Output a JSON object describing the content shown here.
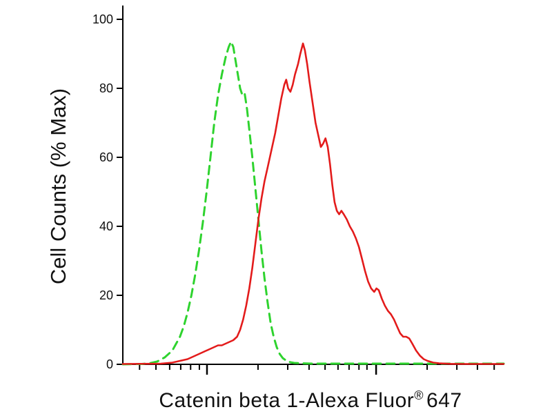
{
  "chart_data": {
    "type": "line",
    "title": "",
    "ylabel": "Cell Counts (% Max)",
    "xlabel": {
      "main": "Catenin beta 1-Alexa Fluor",
      "registered": "®",
      "suffix": "647"
    },
    "x_scale": "log-unlabeled",
    "ylim": [
      0,
      100
    ],
    "y_ticks": [
      0,
      20,
      40,
      60,
      80,
      100
    ],
    "x_major_ticks_pct": [
      22.1,
      66.5
    ],
    "x_minor_ticks_pct": [
      4.4,
      8.7,
      12.3,
      15.2,
      17.8,
      20.1,
      35.5,
      43.3,
      48.9,
      53.1,
      56.5,
      59.4,
      62.0,
      64.1,
      79.9,
      87.7,
      93.1,
      97.5
    ],
    "axis_color": "#000000",
    "series": [
      {
        "name": "control-dashed-green",
        "color": "#2ed32e",
        "dash": "12 8",
        "width": 3,
        "peak_y": 93.5,
        "points": [
          [
            0,
            0
          ],
          [
            5,
            0.1
          ],
          [
            7,
            0.3
          ],
          [
            9,
            0.8
          ],
          [
            11,
            2
          ],
          [
            13,
            4
          ],
          [
            14,
            6
          ],
          [
            15,
            8
          ],
          [
            16,
            11
          ],
          [
            17,
            15
          ],
          [
            18,
            20
          ],
          [
            19,
            26
          ],
          [
            20,
            33
          ],
          [
            21,
            41
          ],
          [
            22,
            50
          ],
          [
            23,
            60
          ],
          [
            24,
            70
          ],
          [
            25,
            78
          ],
          [
            26,
            84
          ],
          [
            27,
            89
          ],
          [
            27.8,
            92
          ],
          [
            28.4,
            93.5
          ],
          [
            29,
            92
          ],
          [
            29.6,
            88
          ],
          [
            30.2,
            84
          ],
          [
            30.8,
            80
          ],
          [
            31.4,
            78
          ],
          [
            32,
            78.5
          ],
          [
            32.6,
            74
          ],
          [
            33.2,
            68
          ],
          [
            34,
            60
          ],
          [
            34.8,
            51
          ],
          [
            35.6,
            42
          ],
          [
            36.4,
            33
          ],
          [
            37.2,
            25
          ],
          [
            38,
            18
          ],
          [
            38.8,
            12
          ],
          [
            39.6,
            8
          ],
          [
            40.4,
            5
          ],
          [
            41.2,
            3
          ],
          [
            42,
            1.8
          ],
          [
            43,
            1
          ],
          [
            44,
            0.6
          ],
          [
            45,
            0.4
          ],
          [
            47,
            0.3
          ],
          [
            50,
            0.2
          ],
          [
            55,
            0.2
          ],
          [
            60,
            0.2
          ],
          [
            65,
            0.2
          ],
          [
            70,
            0.2
          ],
          [
            75,
            0.2
          ],
          [
            80,
            0.2
          ],
          [
            85,
            0.2
          ],
          [
            90,
            0.2
          ],
          [
            95,
            0.2
          ],
          [
            100,
            0.2
          ]
        ]
      },
      {
        "name": "catenin-beta1-solid-red",
        "color": "#e31b1b",
        "dash": "",
        "width": 2.6,
        "peak_y": 93,
        "points": [
          [
            0,
            0.1
          ],
          [
            10,
            0.2
          ],
          [
            13,
            0.5
          ],
          [
            15,
            1
          ],
          [
            17,
            1.5
          ],
          [
            19,
            2.5
          ],
          [
            21,
            3.5
          ],
          [
            22,
            4
          ],
          [
            23,
            4.5
          ],
          [
            24,
            5
          ],
          [
            25,
            5.5
          ],
          [
            26,
            5.5
          ],
          [
            27,
            6
          ],
          [
            28,
            6.5
          ],
          [
            29,
            7
          ],
          [
            30,
            8
          ],
          [
            30.8,
            10
          ],
          [
            31.6,
            13
          ],
          [
            32.4,
            17
          ],
          [
            33.2,
            22
          ],
          [
            34,
            28
          ],
          [
            34.8,
            35
          ],
          [
            35.6,
            42
          ],
          [
            36.4,
            48
          ],
          [
            37.2,
            53
          ],
          [
            38,
            57
          ],
          [
            38.6,
            60
          ],
          [
            39.2,
            63
          ],
          [
            40,
            67
          ],
          [
            40.8,
            72
          ],
          [
            41.6,
            77
          ],
          [
            42.4,
            81
          ],
          [
            42.9,
            82.5
          ],
          [
            43.4,
            80
          ],
          [
            44,
            79
          ],
          [
            44.6,
            81
          ],
          [
            45.2,
            84
          ],
          [
            46,
            87
          ],
          [
            46.6,
            90
          ],
          [
            47.3,
            93
          ],
          [
            47.8,
            91
          ],
          [
            48.4,
            87
          ],
          [
            49,
            82
          ],
          [
            49.8,
            76
          ],
          [
            50.6,
            70
          ],
          [
            51.4,
            66
          ],
          [
            52,
            63
          ],
          [
            52.6,
            64
          ],
          [
            53.2,
            65.5
          ],
          [
            53.8,
            63
          ],
          [
            54.4,
            58
          ],
          [
            55,
            52
          ],
          [
            55.6,
            47
          ],
          [
            56.2,
            44.5
          ],
          [
            56.8,
            43.5
          ],
          [
            57.4,
            44.5
          ],
          [
            58,
            43.5
          ],
          [
            58.8,
            42
          ],
          [
            59.6,
            40
          ],
          [
            60.4,
            38.5
          ],
          [
            61.2,
            36.5
          ],
          [
            62,
            34
          ],
          [
            62.8,
            30.5
          ],
          [
            63.6,
            27
          ],
          [
            64.4,
            24
          ],
          [
            65.2,
            22
          ],
          [
            66,
            21
          ],
          [
            66.6,
            22
          ],
          [
            67.2,
            21.5
          ],
          [
            68,
            19
          ],
          [
            68.8,
            17
          ],
          [
            69.6,
            15.5
          ],
          [
            70.4,
            14.5
          ],
          [
            71.2,
            13
          ],
          [
            72,
            11
          ],
          [
            72.8,
            9
          ],
          [
            73.6,
            8
          ],
          [
            74.4,
            8
          ],
          [
            75.2,
            7.5
          ],
          [
            76,
            6
          ],
          [
            77,
            4
          ],
          [
            78,
            2.5
          ],
          [
            79,
            1.5
          ],
          [
            80,
            1
          ],
          [
            81.5,
            0.5
          ],
          [
            83,
            0.3
          ],
          [
            86,
            0.15
          ],
          [
            90,
            0.1
          ],
          [
            95,
            0.1
          ],
          [
            100,
            0.1
          ]
        ]
      }
    ],
    "legend": "none",
    "grid": "off"
  }
}
